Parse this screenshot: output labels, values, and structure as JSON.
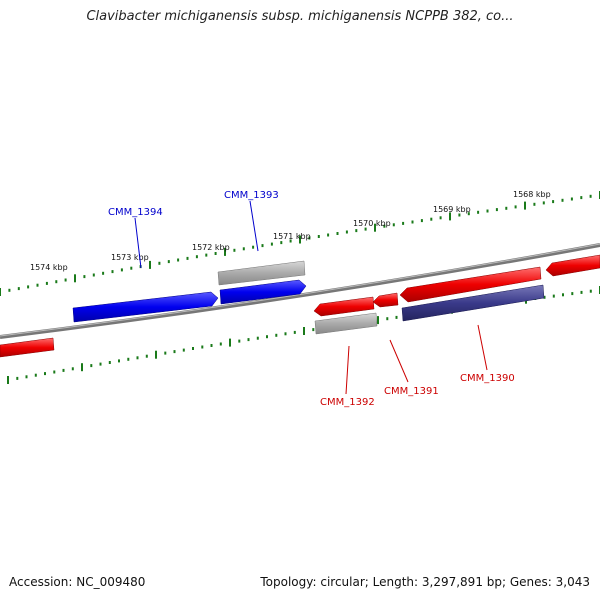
{
  "title": "Clavibacter michiganensis subsp. michiganensis NCPPB 382, co...",
  "footer": {
    "accession": "Accession: NC_009480",
    "summary": "Topology: circular; Length: 3,297,891 bp; Genes: 3,043"
  },
  "colors": {
    "forward_gene": "#0000ee",
    "reverse_gene": "#ee0000",
    "pseudo_gene": "#aaaaaa",
    "dark_gene": "#3a3a8a",
    "backbone": "#888888",
    "ticks": "#1a7a1a",
    "forward_label": "#0000cc",
    "reverse_label": "#cc0000"
  },
  "ticks": [
    {
      "label": "1574 kbp"
    },
    {
      "label": "1573 kbp"
    },
    {
      "label": "1572 kbp"
    },
    {
      "label": "1571 kbp"
    },
    {
      "label": "1570 kbp"
    },
    {
      "label": "1569 kbp"
    },
    {
      "label": "1568 kbp"
    }
  ],
  "genes": [
    {
      "name": "CMM_1394",
      "strand": "forward",
      "type": "gene",
      "labeled": true
    },
    {
      "name": "",
      "strand": "forward",
      "type": "pseudo",
      "labeled": false
    },
    {
      "name": "CMM_1393",
      "strand": "forward",
      "type": "gene",
      "labeled": true
    },
    {
      "name": "",
      "strand": "reverse",
      "type": "gene",
      "labeled": false
    },
    {
      "name": "CMM_1392",
      "strand": "reverse",
      "type": "pseudo",
      "labeled": true
    },
    {
      "name": "",
      "strand": "reverse",
      "type": "gene",
      "labeled": false
    },
    {
      "name": "CMM_1391",
      "strand": "reverse",
      "type": "gene",
      "labeled": true
    },
    {
      "name": "",
      "strand": "reverse",
      "type": "gene",
      "labeled": false
    },
    {
      "name": "CMM_1390",
      "strand": "reverse",
      "type": "dark",
      "labeled": true
    },
    {
      "name": "",
      "strand": "reverse",
      "type": "gene",
      "labeled": false
    }
  ]
}
